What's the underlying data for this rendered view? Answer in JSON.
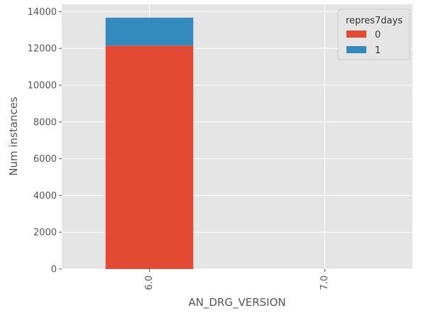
{
  "chart_data": {
    "type": "bar",
    "stacked": true,
    "categories": [
      "6.0",
      "7.0"
    ],
    "series": [
      {
        "name": "0",
        "values": [
          12150,
          0
        ],
        "color": "#E24A33"
      },
      {
        "name": "1",
        "values": [
          1520,
          0
        ],
        "color": "#348ABD"
      }
    ],
    "xlabel": "AN_DRG_VERSION",
    "ylabel": "Num instances",
    "ylim": [
      0,
      14400
    ],
    "yticks": [
      0,
      2000,
      4000,
      6000,
      8000,
      10000,
      12000,
      14000
    ],
    "ytick_labels": [
      "0",
      "2000",
      "4000",
      "6000",
      "8000",
      "10000",
      "12000",
      "14000"
    ],
    "xtick_labels": [
      "6.0",
      "7.0"
    ],
    "xtick_rotation": 90,
    "grid": true,
    "legend": {
      "title": "repres7days",
      "placement": "top-right",
      "entries": [
        "0",
        "1"
      ]
    },
    "style": {
      "background": "#E5E5E5",
      "grid_color": "#FFFFFF",
      "text_color": "#555555"
    }
  }
}
